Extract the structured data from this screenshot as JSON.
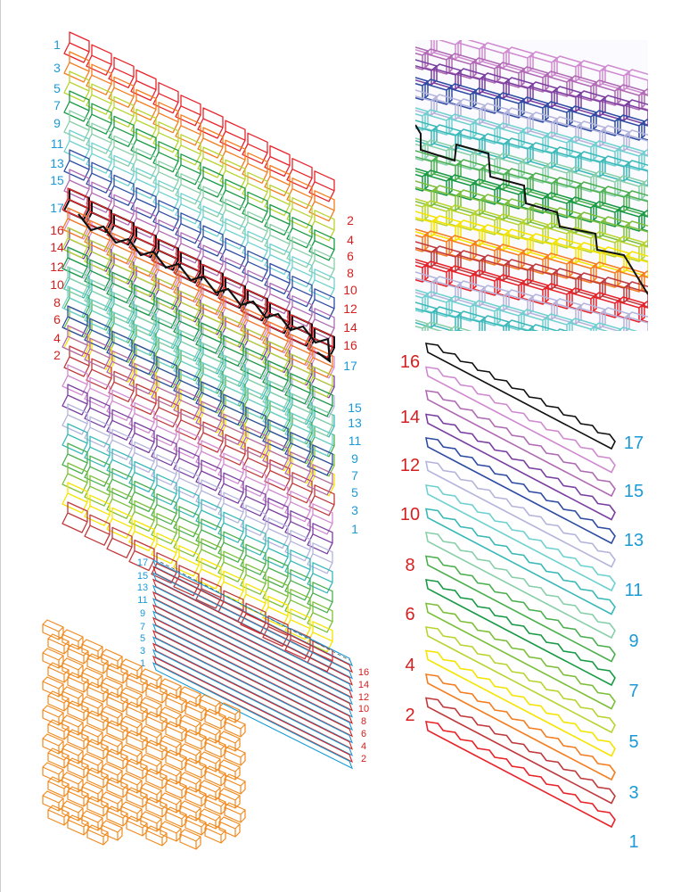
{
  "colors": {
    "label_odd": "#1a9ad6",
    "label_even": "#d42020",
    "palette": {
      "1": "#e8232a",
      "2": "#c0393b",
      "3": "#f47d20",
      "4": "#f5e400",
      "5": "#b8d430",
      "6": "#7cbf3a",
      "7": "#1a9a46",
      "8": "#4caf50",
      "9": "#88cfa9",
      "10": "#3bb8b8",
      "11": "#6fd0d0",
      "12": "#b4b4dc",
      "13": "#2f4ca3",
      "14": "#7a3fa0",
      "15": "#b06ab3",
      "16": "#d08ad0",
      "17": "#111111"
    },
    "orange": "#f08a1e"
  },
  "layers": [
    "1",
    "2",
    "3",
    "4",
    "5",
    "6",
    "7",
    "8",
    "9",
    "10",
    "11",
    "12",
    "13",
    "14",
    "15",
    "16",
    "17"
  ],
  "panel_a": {
    "left_labels": [
      "1",
      "3",
      "5",
      "7",
      "9",
      "11",
      "13",
      "15",
      "17",
      "16",
      "14",
      "12",
      "10",
      "8",
      "6",
      "4",
      "2"
    ],
    "right_labels_top": [
      "2",
      "4",
      "6",
      "8",
      "10",
      "12",
      "14",
      "16",
      "17"
    ],
    "right_labels_bottom": [
      "15",
      "13",
      "11",
      "9",
      "7",
      "5",
      "3",
      "1"
    ]
  },
  "panel_b": {
    "left_labels": [
      "16",
      "14",
      "12",
      "10",
      "8",
      "6",
      "4",
      "2"
    ],
    "right_labels": [
      "17",
      "15",
      "13",
      "11",
      "9",
      "7",
      "5",
      "3",
      "1"
    ]
  },
  "panel_c": {
    "left_labels": [
      "17",
      "15",
      "13",
      "11",
      "9",
      "7",
      "5",
      "3",
      "1"
    ],
    "right_labels": [
      "16",
      "14",
      "12",
      "10",
      "8",
      "6",
      "4",
      "2"
    ]
  }
}
